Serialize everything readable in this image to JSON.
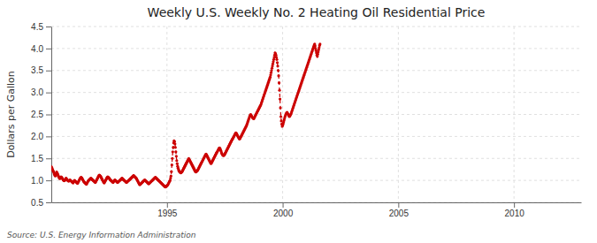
{
  "chart_data": {
    "type": "line",
    "title": "Weekly U.S. Weekly No. 2 Heating Oil Residential Price",
    "ylabel": "Dollars per Gallon",
    "source": "Source: U.S. Energy Information Administration",
    "color": "#cc0000",
    "marker": "circle",
    "line_style": "dashed",
    "grid": true,
    "xlim": [
      1990.0,
      2012.9
    ],
    "ylim": [
      0.5,
      4.5
    ],
    "xticks": [
      1995,
      2000,
      2005,
      2010
    ],
    "yticks": [
      0.5,
      {
        "value": 1.0,
        "label": "1.0"
      },
      1.5,
      {
        "value": 2.0,
        "label": "2.0"
      },
      2.5,
      {
        "value": 3.0,
        "label": "3.0"
      },
      3.5,
      {
        "value": 4.0,
        "label": "4.0"
      },
      4.5
    ],
    "x": [
      1990,
      1990.0192,
      1990.0385,
      1990.0577,
      1990.0769,
      1990.0962,
      1990.1154,
      1990.1346,
      1990.1538,
      1990.1731,
      1990.1923,
      1990.2115,
      1990.2308,
      1990.25,
      1990.2692,
      1990.2885,
      1990.3077,
      1990.3269,
      1990.3462,
      1990.3654,
      1990.3846,
      1990.4038,
      1990.4231,
      1990.4423,
      1990.4615,
      1990.4808,
      1990.5,
      1990.5192,
      1990.5385,
      1990.5577,
      1990.5769,
      1990.5962,
      1990.6154,
      1990.6346,
      1990.6538,
      1990.6731,
      1990.6923,
      1990.7115,
      1990.7308,
      1990.75,
      1990.7692,
      1990.7885,
      1990.8077,
      1990.8269,
      1990.8462,
      1990.8654,
      1990.8846,
      1990.9038,
      1990.9231,
      1990.9423,
      1990.9615,
      1990.9808,
      1991,
      1991.0192,
      1991.0385,
      1991.0577,
      1991.0769,
      1991.0962,
      1991.1154,
      1991.1346,
      1991.1538,
      1991.1731,
      1991.1923,
      1991.2115,
      1991.2308,
      1991.25,
      1991.2692,
      1991.2885,
      1991.3077,
      1991.3269,
      1991.3462,
      1991.3654,
      1991.3846,
      1991.4038,
      1991.4231,
      1991.4423,
      1991.4615,
      1991.4808,
      1991.5,
      1991.5192,
      1991.5385,
      1991.5577,
      1991.5769,
      1991.5962,
      1991.6154,
      1991.6346,
      1991.6538,
      1991.6731,
      1991.6923,
      1991.7115,
      1991.7308,
      1991.75,
      1991.7692,
      1991.7885,
      1991.8077,
      1991.8269,
      1991.8462,
      1991.8654,
      1991.8846,
      1991.9038,
      1991.9231,
      1991.9423,
      1991.9615,
      1991.9808,
      1992,
      1992.0192,
      1992.0385,
      1992.0577,
      1992.0769,
      1992.0962,
      1992.1154,
      1992.1346,
      1992.1538,
      1992.1731,
      1992.1923,
      1992.2115,
      1992.2308,
      1992.25,
      1992.2692,
      1992.2885,
      1992.3077,
      1992.3269,
      1992.3462,
      1992.3654,
      1992.3846,
      1992.4038,
      1992.4231,
      1992.4423,
      1992.4615,
      1992.4808,
      1992.5,
      1992.5192,
      1992.5385,
      1992.5577,
      1992.5769,
      1992.5962,
      1992.6154,
      1992.6346,
      1992.6538,
      1992.6731,
      1992.6923,
      1992.7115,
      1992.7308,
      1992.75,
      1992.7692,
      1992.7885,
      1992.8077,
      1992.8269,
      1992.8462,
      1992.8654,
      1992.8846,
      1992.9038,
      1992.9231,
      1992.9423,
      1992.9615,
      1992.9808,
      1993,
      1993.0192,
      1993.0385,
      1993.0577,
      1993.0769,
      1993.0962,
      1993.1154,
      1993.1346,
      1993.1538,
      1993.1731,
      1993.1923,
      1993.2115,
      1993.2308,
      1993.25,
      1993.2692,
      1993.2885,
      1993.3077,
      1993.3269,
      1993.3462,
      1993.3654,
      1993.3846,
      1993.4038,
      1993.4231,
      1993.4423,
      1993.4615,
      1993.4808,
      1993.5,
      1993.5192,
      1993.5385,
      1993.5577,
      1993.5769,
      1993.5962,
      1993.6154,
      1993.6346,
      1993.6538,
      1993.6731,
      1993.6923,
      1993.7115,
      1993.7308,
      1993.75,
      1993.7692,
      1993.7885,
      1993.8077,
      1993.8269,
      1993.8462,
      1993.8654,
      1993.8846,
      1993.9038,
      1993.9231,
      1993.9423,
      1993.9615,
      1993.9808,
      1994,
      1994.0192,
      1994.0385,
      1994.0577,
      1994.0769,
      1994.0962,
      1994.1154,
      1994.1346,
      1994.1538,
      1994.1731,
      1994.1923,
      1994.2115,
      1994.2308,
      1994.25,
      1994.2692,
      1994.2885,
      1994.3077,
      1994.3269,
      1994.3462,
      1994.3654,
      1994.3846,
      1994.4038,
      1994.4231,
      1994.4423,
      1994.4615,
      1994.4808,
      1994.5,
      1994.5192,
      1994.5385,
      1994.5577,
      1994.5769,
      1994.5962,
      1994.6154,
      1994.6346,
      1994.6538,
      1994.6731,
      1994.6923,
      1994.7115,
      1994.7308,
      1994.75,
      1994.7692,
      1994.7885,
      1994.8077,
      1994.8269,
      1994.8462,
      1994.8654,
      1994.8846,
      1994.9038,
      1994.9231,
      1994.9423,
      1994.9615,
      1994.9808,
      1995,
      1995.0192,
      1995.0385,
      1995.0577,
      1995.0769,
      1995.0962,
      1995.1154,
      1995.1346,
      1995.1538,
      1995.1731,
      1995.1923,
      1995.2115,
      1995.2308,
      1995.25,
      1995.2692,
      1995.2885,
      1995.3077,
      1995.3269,
      1995.3462,
      1995.3654,
      1995.3846,
      1995.4038,
      1995.4231,
      1995.4423,
      1995.4615,
      1995.4808,
      1995.5,
      1995.5192,
      1995.5385,
      1995.5577,
      1995.5769,
      1995.5962,
      1995.6154,
      1995.6346,
      1995.6538,
      1995.6731,
      1995.6923,
      1995.7115,
      1995.7308,
      1995.75,
      1995.7692,
      1995.7885,
      1995.8077,
      1995.8269,
      1995.8462,
      1995.8654,
      1995.8846,
      1995.9038,
      1995.9231,
      1995.9423,
      1995.9615,
      1995.9808,
      1996,
      1996.0192,
      1996.0385,
      1996.0577,
      1996.0769,
      1996.0962,
      1996.1154,
      1996.1346,
      1996.1538,
      1996.1731,
      1996.1923,
      1996.2115,
      1996.2308,
      1996.25,
      1996.2692,
      1996.2885,
      1996.3077,
      1996.3269,
      1996.3462,
      1996.3654,
      1996.3846,
      1996.4038,
      1996.4231,
      1996.4423,
      1996.4615,
      1996.4808,
      1996.5,
      1996.5192,
      1996.5385,
      1996.5577,
      1996.5769,
      1996.5962,
      1996.6154,
      1996.6346,
      1996.6538,
      1996.6731,
      1996.6923,
      1996.7115,
      1996.7308,
      1996.75,
      1996.7692,
      1996.7885,
      1996.8077,
      1996.8269,
      1996.8462,
      1996.8654,
      1996.8846,
      1996.9038,
      1996.9231,
      1996.9423,
      1996.9615,
      1996.9808,
      1997,
      1997.0192,
      1997.0385,
      1997.0577,
      1997.0769,
      1997.0962,
      1997.1154,
      1997.1346,
      1997.1538,
      1997.1731,
      1997.1923,
      1997.2115,
      1997.2308,
      1997.25,
      1997.2692,
      1997.2885,
      1997.3077,
      1997.3269,
      1997.3462,
      1997.3654,
      1997.3846,
      1997.4038,
      1997.4231,
      1997.4423,
      1997.4615,
      1997.4808,
      1997.5,
      1997.5192,
      1997.5385,
      1997.5577,
      1997.5769,
      1997.5962,
      1997.6154,
      1997.6346,
      1997.6538,
      1997.6731,
      1997.6923,
      1997.7115,
      1997.7308,
      1997.75,
      1997.7692,
      1997.7885,
      1997.8077,
      1997.8269,
      1997.8462,
      1997.8654,
      1997.8846,
      1997.9038,
      1997.9231,
      1997.9423,
      1997.9615,
      1997.9808,
      1998,
      1998.0192,
      1998.0385,
      1998.0577,
      1998.0769,
      1998.0962,
      1998.1154,
      1998.1346,
      1998.1538,
      1998.1731,
      1998.1923,
      1998.2115,
      1998.2308,
      1998.25,
      1998.2692,
      1998.2885,
      1998.3077,
      1998.3269,
      1998.3462,
      1998.3654,
      1998.3846,
      1998.4038,
      1998.4231,
      1998.4423,
      1998.4615,
      1998.4808,
      1998.5,
      1998.5192,
      1998.5385,
      1998.5577,
      1998.5769,
      1998.5962,
      1998.6154,
      1998.6346,
      1998.6538,
      1998.6731,
      1998.6923,
      1998.7115,
      1998.7308,
      1998.75,
      1998.7692,
      1998.7885,
      1998.8077,
      1998.8269,
      1998.8462,
      1998.8654,
      1998.8846,
      1998.9038,
      1998.9231,
      1998.9423,
      1998.9615,
      1998.9808,
      1999,
      1999.0192,
      1999.0385,
      1999.0577,
      1999.0769,
      1999.0962,
      1999.1154,
      1999.1346,
      1999.1538,
      1999.1731,
      1999.1923,
      1999.2115,
      1999.2308,
      1999.25,
      1999.2692,
      1999.2885,
      1999.3077,
      1999.3269,
      1999.3462,
      1999.3654,
      1999.3846,
      1999.4038,
      1999.4231,
      1999.4423,
      1999.4615,
      1999.4808,
      1999.5,
      1999.5192,
      1999.5385,
      1999.5577,
      1999.5769,
      1999.5962,
      1999.6154,
      1999.6346,
      1999.6538,
      1999.6731,
      1999.6923,
      1999.7115,
      1999.7308,
      1999.75,
      1999.7692,
      1999.7885,
      1999.8077,
      1999.8269,
      1999.8462,
      1999.8654,
      1999.8846,
      1999.9038,
      1999.9231,
      1999.9423,
      1999.9615,
      1999.9808,
      2000,
      2000.0192,
      2000.0385,
      2000.0577,
      2000.0769,
      2000.0962,
      2000.1154,
      2000.1346,
      2000.1538,
      2000.1731,
      2000.1923,
      2000.2115,
      2000.2308,
      2000.25,
      2000.2692,
      2000.2885,
      2000.3077,
      2000.3269,
      2000.3462,
      2000.3654,
      2000.3846,
      2000.4038,
      2000.4231,
      2000.4423,
      2000.4615,
      2000.4808,
      2000.5,
      2000.5192,
      2000.5385,
      2000.5577,
      2000.5769,
      2000.5962,
      2000.6154,
      2000.6346,
      2000.6538,
      2000.6731,
      2000.6923,
      2000.7115,
      2000.7308,
      2000.75,
      2000.7692,
      2000.7885,
      2000.8077,
      2000.8269,
      2000.8462,
      2000.8654,
      2000.8846,
      2000.9038,
      2000.9231,
      2000.9423,
      2000.9615,
      2000.9808,
      2001,
      2001.0192,
      2001.0385,
      2001.0577,
      2001.0769,
      2001.0962,
      2001.1154,
      2001.1346,
      2001.1538,
      2001.1731,
      2001.1923,
      2001.2115,
      2001.2308,
      2001.25,
      2001.2692,
      2001.2885,
      2001.3077,
      2001.3269,
      2001.3462,
      2001.3654,
      2001.3846,
      2001.4038,
      2001.4231,
      2001.4423,
      2001.4615,
      2001.4808,
      2001.5,
      2001.5192,
      2001.5385,
      2001.5577,
      2001.5769,
      2001.5962,
      2001.6154
    ],
    "values": [
      1.31,
      1.29,
      1.27,
      1.24,
      1.22,
      1.2,
      1.17,
      1.14,
      1.12,
      1.1,
      1.13,
      1.16,
      1.19,
      1.17,
      1.15,
      1.13,
      1.1,
      1.08,
      1.06,
      1.04,
      1.05,
      1.07,
      1.08,
      1.07,
      1.06,
      1.04,
      1.03,
      1.01,
      1.0,
      0.99,
      1.0,
      1.01,
      1.03,
      1.05,
      1.04,
      1.02,
      1.01,
      1.0,
      0.99,
      0.98,
      0.99,
      1.0,
      1.01,
      1.0,
      0.99,
      0.98,
      0.97,
      0.96,
      0.95,
      0.94,
      0.96,
      0.98,
      1.0,
      0.99,
      0.98,
      0.97,
      0.96,
      0.95,
      0.94,
      0.93,
      0.95,
      0.97,
      0.99,
      1.01,
      1.03,
      1.05,
      1.06,
      1.07,
      1.06,
      1.05,
      1.03,
      1.01,
      0.99,
      0.97,
      0.96,
      0.95,
      0.94,
      0.93,
      0.92,
      0.91,
      0.93,
      0.95,
      0.97,
      0.99,
      1.0,
      1.01,
      1.02,
      1.03,
      1.04,
      1.05,
      1.04,
      1.03,
      1.02,
      1.01,
      1.0,
      0.99,
      0.98,
      0.97,
      0.96,
      0.95,
      0.97,
      0.99,
      1.01,
      1.03,
      1.05,
      1.07,
      1.09,
      1.11,
      1.12,
      1.11,
      1.1,
      1.09,
      1.07,
      1.05,
      1.03,
      1.01,
      0.99,
      0.97,
      0.95,
      0.94,
      0.96,
      0.98,
      1.0,
      1.02,
      1.04,
      1.06,
      1.07,
      1.08,
      1.07,
      1.06,
      1.05,
      1.04,
      1.02,
      1.01,
      1.0,
      0.99,
      0.98,
      0.97,
      0.96,
      0.95,
      0.97,
      0.99,
      1.0,
      1.01,
      1.0,
      0.99,
      0.98,
      0.97,
      0.96,
      0.95,
      0.96,
      0.97,
      0.98,
      0.99,
      1.0,
      1.01,
      1.02,
      1.03,
      1.04,
      1.05,
      1.04,
      1.03,
      1.02,
      1.01,
      1.0,
      0.99,
      0.98,
      0.97,
      0.96,
      0.95,
      0.96,
      0.97,
      0.98,
      0.99,
      1.0,
      1.01,
      1.02,
      1.03,
      1.04,
      1.05,
      1.06,
      1.07,
      1.08,
      1.09,
      1.1,
      1.11,
      1.1,
      1.09,
      1.08,
      1.07,
      1.06,
      1.05,
      1.03,
      1.01,
      0.99,
      0.97,
      0.95,
      0.93,
      0.91,
      0.9,
      0.91,
      0.92,
      0.93,
      0.94,
      0.95,
      0.96,
      0.97,
      0.98,
      0.99,
      1.0,
      1.01,
      1.0,
      0.99,
      0.98,
      0.97,
      0.96,
      0.95,
      0.94,
      0.93,
      0.92,
      0.93,
      0.94,
      0.95,
      0.96,
      0.97,
      0.98,
      0.99,
      1.0,
      1.01,
      1.02,
      1.03,
      1.04,
      1.05,
      1.06,
      1.07,
      1.06,
      1.05,
      1.04,
      1.03,
      1.02,
      1.01,
      1.0,
      0.99,
      0.98,
      0.97,
      0.96,
      0.95,
      0.94,
      0.93,
      0.92,
      0.91,
      0.9,
      0.89,
      0.88,
      0.87,
      0.86,
      0.85,
      0.85,
      0.86,
      0.87,
      0.88,
      0.89,
      0.9,
      0.92,
      0.94,
      0.96,
      0.98,
      1.0,
      1.05,
      1.1,
      1.2,
      1.35,
      1.5,
      1.65,
      1.75,
      1.85,
      1.9,
      1.88,
      1.83,
      1.75,
      1.65,
      1.55,
      1.45,
      1.38,
      1.32,
      1.28,
      1.25,
      1.22,
      1.2,
      1.19,
      1.18,
      1.17,
      1.18,
      1.19,
      1.2,
      1.22,
      1.24,
      1.26,
      1.28,
      1.3,
      1.32,
      1.34,
      1.36,
      1.38,
      1.4,
      1.42,
      1.44,
      1.46,
      1.48,
      1.5,
      1.48,
      1.46,
      1.44,
      1.42,
      1.4,
      1.38,
      1.36,
      1.34,
      1.32,
      1.3,
      1.28,
      1.26,
      1.24,
      1.22,
      1.2,
      1.19,
      1.2,
      1.21,
      1.22,
      1.23,
      1.25,
      1.27,
      1.29,
      1.31,
      1.33,
      1.35,
      1.37,
      1.39,
      1.41,
      1.43,
      1.45,
      1.47,
      1.49,
      1.51,
      1.53,
      1.55,
      1.57,
      1.59,
      1.6,
      1.58,
      1.56,
      1.54,
      1.52,
      1.5,
      1.48,
      1.46,
      1.44,
      1.42,
      1.4,
      1.38,
      1.4,
      1.42,
      1.44,
      1.46,
      1.48,
      1.5,
      1.52,
      1.54,
      1.56,
      1.58,
      1.6,
      1.62,
      1.64,
      1.65,
      1.67,
      1.69,
      1.71,
      1.73,
      1.74,
      1.73,
      1.71,
      1.68,
      1.65,
      1.62,
      1.6,
      1.58,
      1.57,
      1.56,
      1.57,
      1.58,
      1.6,
      1.62,
      1.64,
      1.66,
      1.68,
      1.7,
      1.72,
      1.74,
      1.76,
      1.78,
      1.8,
      1.82,
      1.84,
      1.86,
      1.88,
      1.9,
      1.92,
      1.94,
      1.95,
      1.97,
      1.99,
      2.01,
      2.03,
      2.05,
      2.07,
      2.08,
      2.07,
      2.05,
      2.03,
      2.01,
      1.99,
      1.97,
      1.95,
      1.94,
      1.95,
      1.97,
      1.99,
      2.01,
      2.03,
      2.05,
      2.07,
      2.09,
      2.11,
      2.13,
      2.15,
      2.17,
      2.19,
      2.21,
      2.23,
      2.25,
      2.28,
      2.31,
      2.34,
      2.37,
      2.4,
      2.43,
      2.46,
      2.48,
      2.5,
      2.49,
      2.47,
      2.45,
      2.43,
      2.42,
      2.41,
      2.4,
      2.42,
      2.44,
      2.46,
      2.48,
      2.5,
      2.52,
      2.54,
      2.56,
      2.58,
      2.6,
      2.62,
      2.64,
      2.66,
      2.68,
      2.7,
      2.72,
      2.75,
      2.78,
      2.81,
      2.84,
      2.87,
      2.9,
      2.93,
      2.96,
      2.99,
      3.02,
      3.05,
      3.08,
      3.11,
      3.14,
      3.17,
      3.2,
      3.23,
      3.26,
      3.29,
      3.32,
      3.35,
      3.4,
      3.45,
      3.5,
      3.55,
      3.6,
      3.65,
      3.7,
      3.75,
      3.8,
      3.85,
      3.9,
      3.88,
      3.85,
      3.8,
      3.75,
      3.68,
      3.6,
      3.5,
      3.38,
      3.22,
      3.05,
      2.85,
      2.65,
      2.45,
      2.35,
      2.28,
      2.23,
      2.25,
      2.28,
      2.32,
      2.36,
      2.4,
      2.44,
      2.47,
      2.5,
      2.52,
      2.54,
      2.55,
      2.53,
      2.51,
      2.49,
      2.47,
      2.45,
      2.46,
      2.48,
      2.5,
      2.52,
      2.55,
      2.58,
      2.61,
      2.64,
      2.67,
      2.7,
      2.73,
      2.76,
      2.79,
      2.82,
      2.85,
      2.88,
      2.91,
      2.94,
      2.97,
      3.0,
      3.03,
      3.06,
      3.09,
      3.12,
      3.15,
      3.18,
      3.21,
      3.24,
      3.27,
      3.3,
      3.33,
      3.36,
      3.39,
      3.42,
      3.45,
      3.48,
      3.51,
      3.54,
      3.57,
      3.6,
      3.63,
      3.66,
      3.69,
      3.72,
      3.75,
      3.78,
      3.81,
      3.84,
      3.87,
      3.9,
      3.93,
      3.96,
      3.99,
      4.02,
      4.05,
      4.08,
      4.1,
      4.06,
      4.0,
      3.95,
      3.9,
      3.85,
      3.82,
      3.87,
      3.92,
      3.97,
      4.02,
      4.07,
      4.1
    ]
  }
}
